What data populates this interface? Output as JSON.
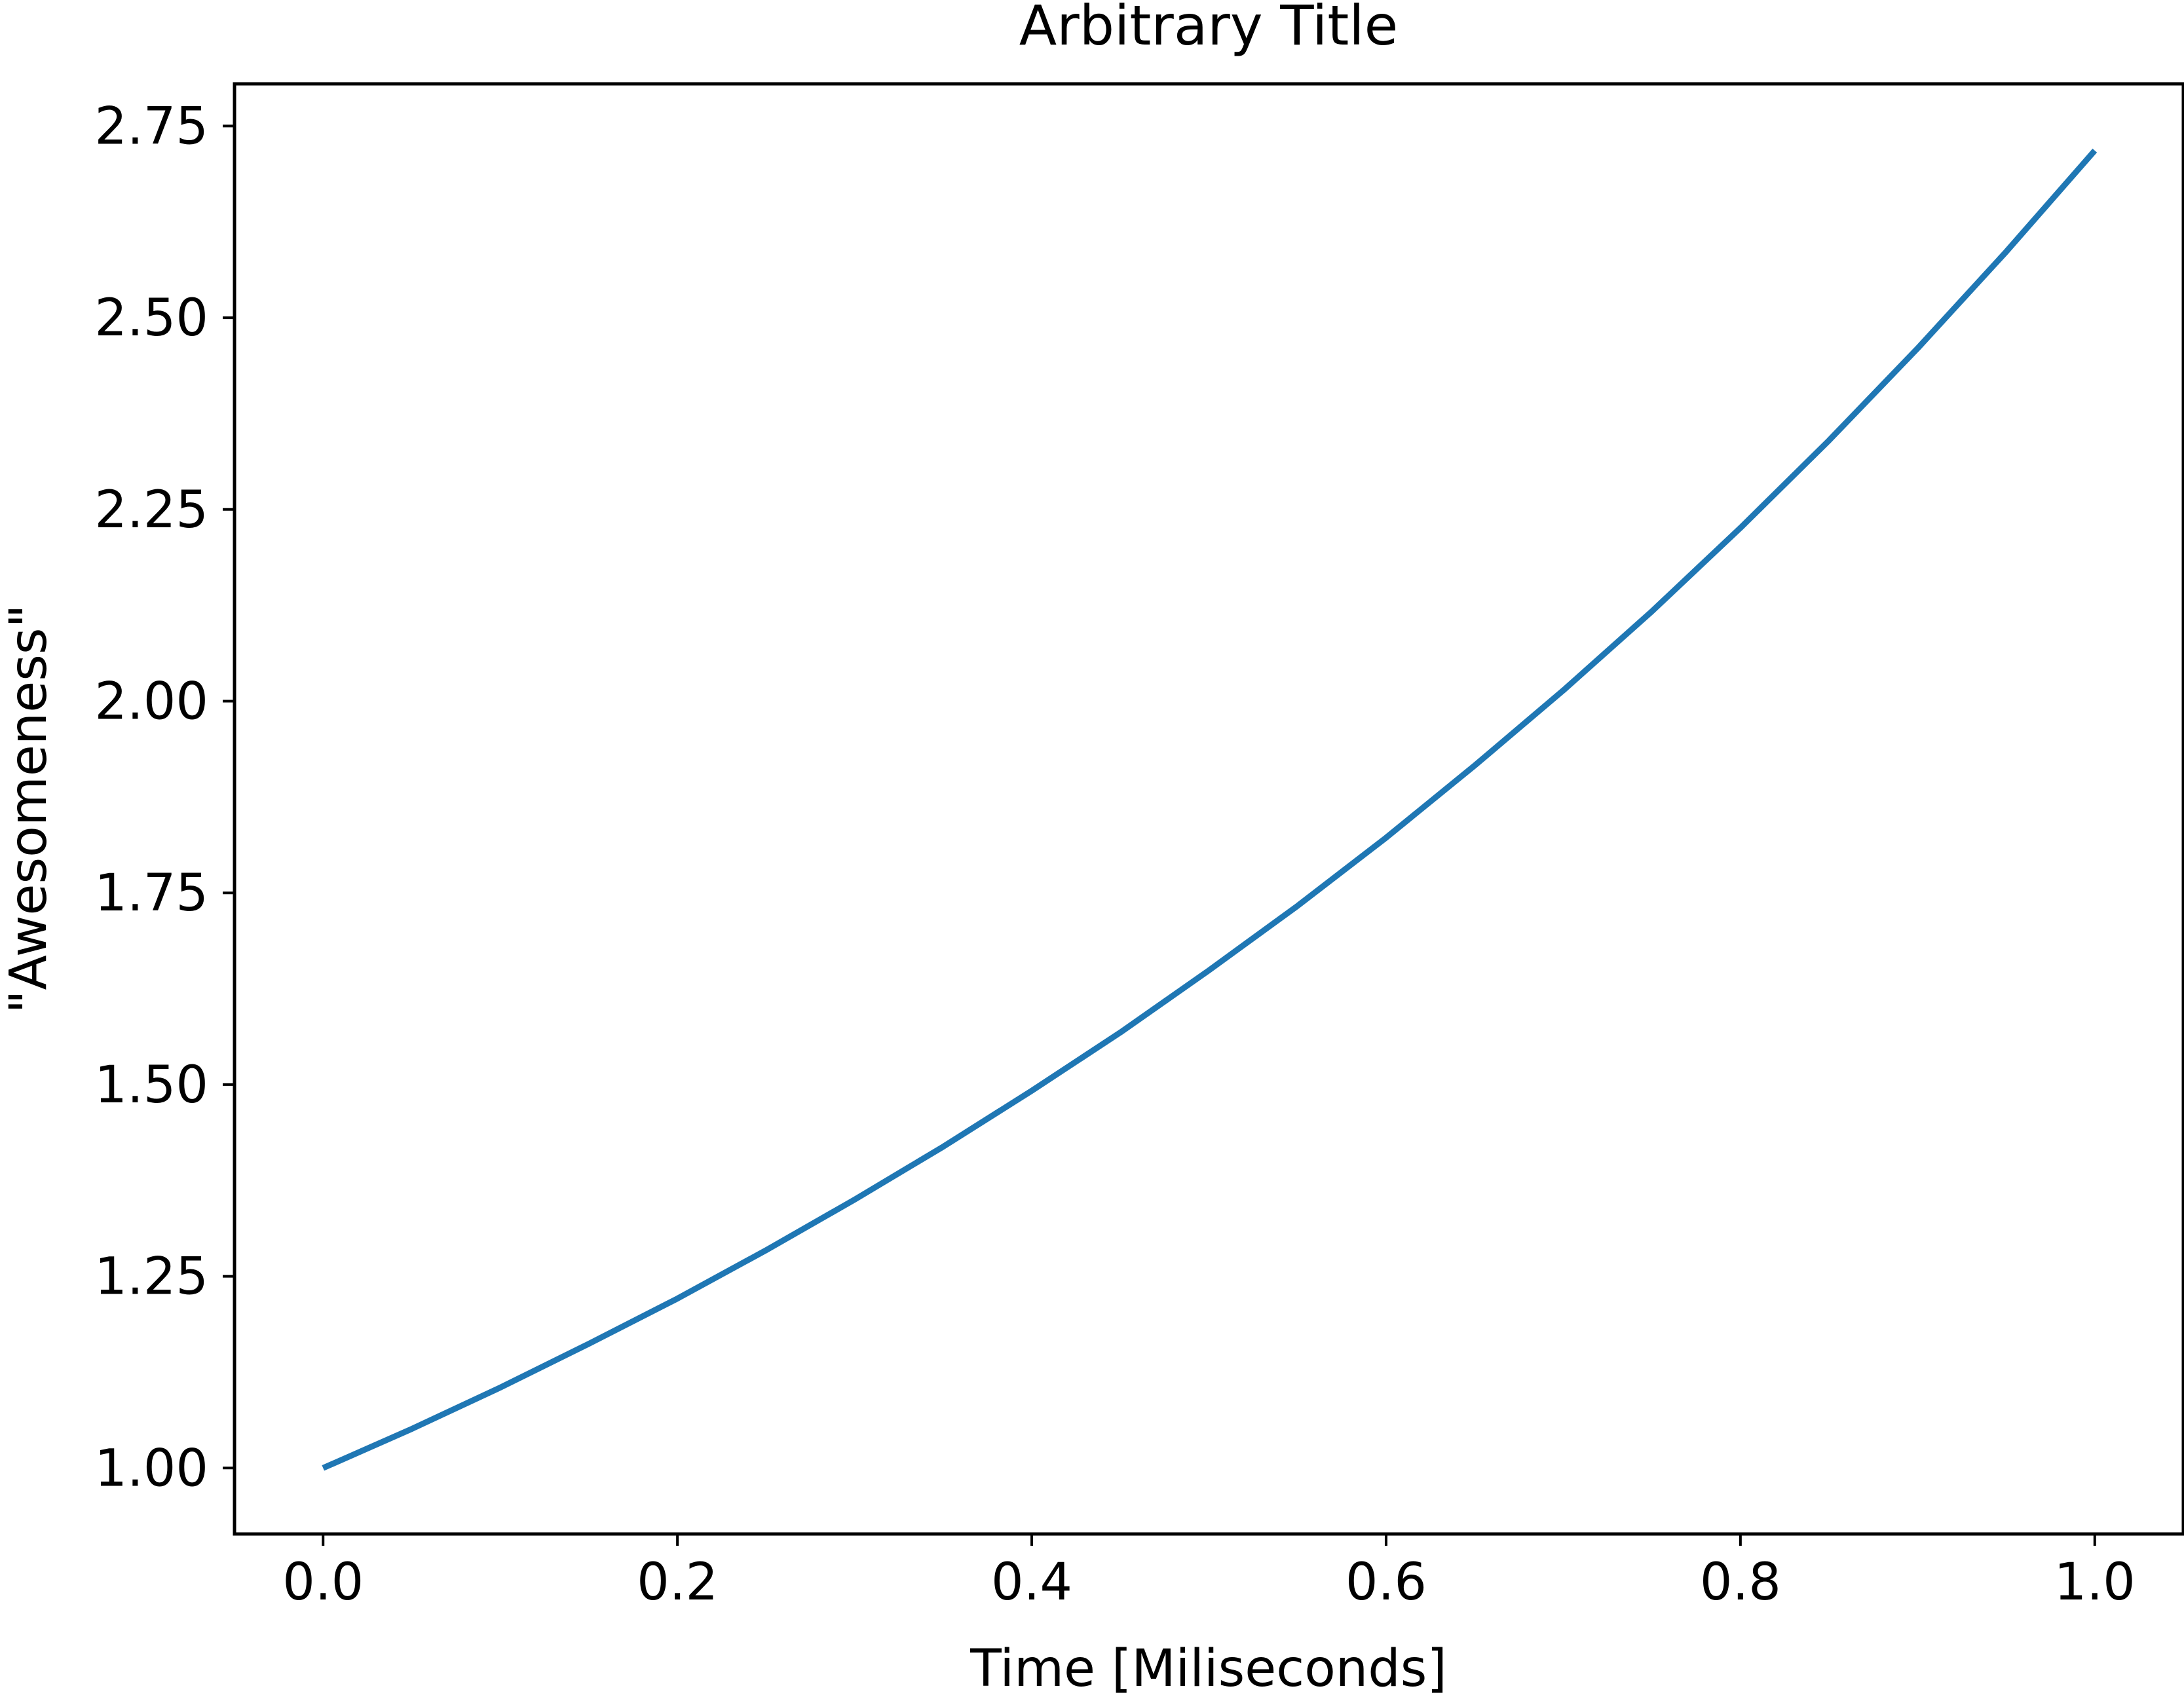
{
  "chart_data": {
    "type": "line",
    "title": "Arbitrary Title",
    "xlabel": "Time [Miliseconds]",
    "ylabel": "\"Awesomeness\"",
    "xlim": [
      -0.05,
      1.05
    ],
    "ylim": [
      0.914,
      2.805
    ],
    "grid": false,
    "x_ticks": [
      0.0,
      0.2,
      0.4,
      0.6,
      0.8,
      1.0
    ],
    "x_tick_labels": [
      "0.0",
      "0.2",
      "0.4",
      "0.6",
      "0.8",
      "1.0"
    ],
    "y_ticks": [
      1.0,
      1.25,
      1.5,
      1.75,
      2.0,
      2.25,
      2.5,
      2.75
    ],
    "y_tick_labels": [
      "1.00",
      "1.25",
      "1.50",
      "1.75",
      "2.00",
      "2.25",
      "2.50",
      "2.75"
    ],
    "series": [
      {
        "color": "#1f77b4",
        "x": [
          0.0,
          0.05,
          0.1,
          0.15,
          0.2,
          0.25,
          0.3,
          0.35,
          0.4,
          0.45,
          0.5,
          0.55,
          0.6,
          0.65,
          0.7,
          0.75,
          0.8,
          0.85,
          0.9,
          0.95,
          1.0
        ],
        "y": [
          1.0,
          1.051,
          1.105,
          1.162,
          1.221,
          1.284,
          1.35,
          1.419,
          1.492,
          1.568,
          1.649,
          1.733,
          1.822,
          1.916,
          2.014,
          2.117,
          2.226,
          2.34,
          2.46,
          2.586,
          2.718
        ]
      }
    ]
  }
}
